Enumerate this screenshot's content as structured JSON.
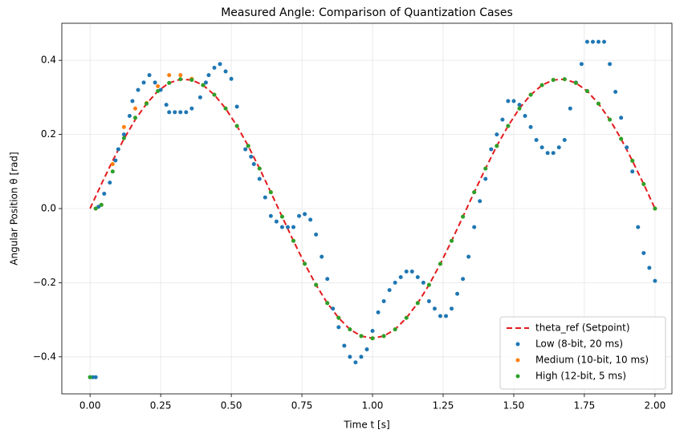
{
  "chart_data": {
    "type": "scatter",
    "title": "Measured Angle: Comparison of Quantization Cases",
    "x_label": "Time t  [s]",
    "y_label": "Angular Position θ  [rad]",
    "xlim": [
      -0.1,
      2.06
    ],
    "ylim": [
      -0.5,
      0.5
    ],
    "xticks": [
      {
        "value": 0,
        "label": "0.00"
      },
      {
        "value": 0.25,
        "label": "0.25"
      },
      {
        "value": 0.5,
        "label": "0.50"
      },
      {
        "value": 0.75,
        "label": "0.75"
      },
      {
        "value": 1,
        "label": "1.00"
      },
      {
        "value": 1.25,
        "label": "1.25"
      },
      {
        "value": 1.5,
        "label": "1.50"
      },
      {
        "value": 1.75,
        "label": "1.75"
      },
      {
        "value": 2,
        "label": "2.00"
      }
    ],
    "yticks": [
      {
        "value": -0.4,
        "label": "−0.4"
      },
      {
        "value": -0.2,
        "label": "−0.2"
      },
      {
        "value": 0,
        "label": "0.0"
      },
      0.2,
      0.4
    ],
    "grid": true,
    "legend": "lower right",
    "series": [
      {
        "name": "theta_ref (Setpoint)",
        "color": "#e41a1c",
        "style": "dashed-line",
        "x": [
          0,
          0.04,
          0.08,
          0.12,
          0.16,
          0.2,
          0.24,
          0.28,
          0.32,
          0.36,
          0.4,
          0.44,
          0.48,
          0.52,
          0.56,
          0.6,
          0.64,
          0.68,
          0.72,
          0.76,
          0.8,
          0.84,
          0.88,
          0.92,
          0.96,
          1.0,
          1.04,
          1.08,
          1.12,
          1.16,
          1.2,
          1.24,
          1.28,
          1.32,
          1.36,
          1.4,
          1.44,
          1.48,
          1.52,
          1.56,
          1.6,
          1.64,
          1.68,
          1.72,
          1.76,
          1.8,
          1.84,
          1.88,
          1.92,
          1.96,
          2.0
        ],
        "values": [
          0,
          0.066,
          0.129,
          0.188,
          0.24,
          0.283,
          0.317,
          0.339,
          0.349,
          0.347,
          0.333,
          0.307,
          0.27,
          0.223,
          0.169,
          0.108,
          0.044,
          -0.022,
          -0.087,
          -0.149,
          -0.206,
          -0.255,
          -0.295,
          -0.326,
          -0.344,
          -0.35,
          -0.344,
          -0.326,
          -0.295,
          -0.255,
          -0.206,
          -0.149,
          -0.087,
          -0.022,
          0.044,
          0.108,
          0.169,
          0.223,
          0.27,
          0.307,
          0.333,
          0.347,
          0.349,
          0.339,
          0.317,
          0.283,
          0.24,
          0.188,
          0.129,
          0.066,
          0
        ]
      },
      {
        "name": "Low (8-bit, 20 ms)",
        "color": "#1f77b4",
        "style": "markers",
        "x": [
          0,
          0.01,
          0.02,
          0.03,
          0.05,
          0.07,
          0.09,
          0.1,
          0.12,
          0.14,
          0.15,
          0.17,
          0.19,
          0.21,
          0.23,
          0.25,
          0.27,
          0.28,
          0.3,
          0.32,
          0.34,
          0.36,
          0.39,
          0.41,
          0.42,
          0.44,
          0.46,
          0.48,
          0.5,
          0.52,
          0.55,
          0.57,
          0.58,
          0.6,
          0.62,
          0.64,
          0.66,
          0.68,
          0.7,
          0.72,
          0.74,
          0.76,
          0.78,
          0.8,
          0.82,
          0.84,
          0.86,
          0.88,
          0.9,
          0.92,
          0.94,
          0.96,
          0.98,
          1.0,
          1.02,
          1.04,
          1.06,
          1.08,
          1.1,
          1.12,
          1.14,
          1.16,
          1.18,
          1.2,
          1.22,
          1.24,
          1.26,
          1.28,
          1.3,
          1.32,
          1.34,
          1.36,
          1.38,
          1.4,
          1.42,
          1.44,
          1.46,
          1.48,
          1.5,
          1.52,
          1.54,
          1.56,
          1.58,
          1.6,
          1.62,
          1.64,
          1.66,
          1.68,
          1.7,
          1.72,
          1.74,
          1.76,
          1.78,
          1.8,
          1.82,
          1.84,
          1.86,
          1.88,
          1.9,
          1.92,
          1.94,
          1.96,
          1.98,
          2.0
        ],
        "values": [
          -0.455,
          -0.455,
          -0.455,
          0.005,
          0.04,
          0.07,
          0.13,
          0.16,
          0.2,
          0.25,
          0.29,
          0.32,
          0.34,
          0.36,
          0.34,
          0.32,
          0.28,
          0.26,
          0.26,
          0.26,
          0.26,
          0.27,
          0.3,
          0.34,
          0.36,
          0.38,
          0.39,
          0.37,
          0.35,
          0.275,
          0.16,
          0.14,
          0.12,
          0.08,
          0.03,
          -0.02,
          -0.035,
          -0.05,
          -0.05,
          -0.05,
          -0.02,
          -0.015,
          -0.03,
          -0.07,
          -0.13,
          -0.19,
          -0.27,
          -0.32,
          -0.37,
          -0.4,
          -0.415,
          -0.4,
          -0.38,
          -0.33,
          -0.28,
          -0.25,
          -0.22,
          -0.2,
          -0.185,
          -0.17,
          -0.17,
          -0.185,
          -0.2,
          -0.25,
          -0.27,
          -0.29,
          -0.29,
          -0.27,
          -0.23,
          -0.19,
          -0.13,
          -0.05,
          0.02,
          0.08,
          0.16,
          0.2,
          0.24,
          0.29,
          0.29,
          0.28,
          0.25,
          0.22,
          0.185,
          0.165,
          0.15,
          0.15,
          0.165,
          0.185,
          0.27,
          0.34,
          0.39,
          0.45,
          0.45,
          0.45,
          0.45,
          0.39,
          0.315,
          0.245,
          0.165,
          0.1,
          -0.05,
          -0.12,
          -0.16,
          -0.195
        ]
      },
      {
        "name": "Medium (10-bit, 10 ms)",
        "color": "#ff7f0e",
        "style": "markers",
        "x": [
          0.02,
          0.04,
          0.08,
          0.12,
          0.16,
          0.2,
          0.24,
          0.28,
          0.32,
          0.36,
          0.4,
          0.44,
          0.48,
          0.52,
          0.56,
          0.6,
          0.64,
          0.68,
          0.72,
          0.76,
          0.8,
          0.84,
          0.88,
          0.92,
          0.96,
          1.0,
          1.04,
          1.08,
          1.12,
          1.16,
          1.2,
          1.24,
          1.28,
          1.32,
          1.36,
          1.4,
          1.44,
          1.48,
          1.52,
          1.56,
          1.6,
          1.64,
          1.68,
          1.72,
          1.76,
          1.8,
          1.84,
          1.88,
          1.92,
          1.96,
          2.0
        ],
        "values": [
          0,
          0.01,
          0.12,
          0.22,
          0.27,
          0.285,
          0.33,
          0.36,
          0.36,
          0.35,
          0.333,
          0.307,
          0.27,
          0.223,
          0.169,
          0.108,
          0.044,
          -0.022,
          -0.087,
          -0.149,
          -0.206,
          -0.255,
          -0.295,
          -0.326,
          -0.344,
          -0.35,
          -0.344,
          -0.326,
          -0.295,
          -0.255,
          -0.206,
          -0.149,
          -0.087,
          -0.022,
          0.044,
          0.108,
          0.169,
          0.223,
          0.27,
          0.307,
          0.333,
          0.347,
          0.349,
          0.339,
          0.317,
          0.283,
          0.24,
          0.188,
          0.129,
          0.066,
          0
        ]
      },
      {
        "name": "High (12-bit, 5 ms)",
        "color": "#2ca02c",
        "style": "markers",
        "x": [
          0,
          0.02,
          0.04,
          0.08,
          0.12,
          0.16,
          0.2,
          0.24,
          0.28,
          0.32,
          0.36,
          0.4,
          0.44,
          0.48,
          0.52,
          0.56,
          0.6,
          0.64,
          0.68,
          0.72,
          0.76,
          0.8,
          0.84,
          0.88,
          0.92,
          0.96,
          1.0,
          1.04,
          1.08,
          1.12,
          1.16,
          1.2,
          1.24,
          1.28,
          1.32,
          1.36,
          1.4,
          1.44,
          1.48,
          1.52,
          1.56,
          1.6,
          1.64,
          1.68,
          1.72,
          1.76,
          1.8,
          1.84,
          1.88,
          1.92,
          1.96,
          2.0
        ],
        "values": [
          -0.455,
          0,
          0.01,
          0.1,
          0.19,
          0.245,
          0.283,
          0.317,
          0.339,
          0.349,
          0.347,
          0.333,
          0.307,
          0.27,
          0.223,
          0.169,
          0.108,
          0.044,
          -0.022,
          -0.087,
          -0.149,
          -0.206,
          -0.255,
          -0.295,
          -0.326,
          -0.344,
          -0.35,
          -0.344,
          -0.326,
          -0.295,
          -0.255,
          -0.206,
          -0.149,
          -0.087,
          -0.022,
          0.044,
          0.108,
          0.169,
          0.223,
          0.27,
          0.307,
          0.333,
          0.347,
          0.349,
          0.339,
          0.317,
          0.283,
          0.24,
          0.188,
          0.129,
          0.066,
          0
        ]
      }
    ]
  }
}
